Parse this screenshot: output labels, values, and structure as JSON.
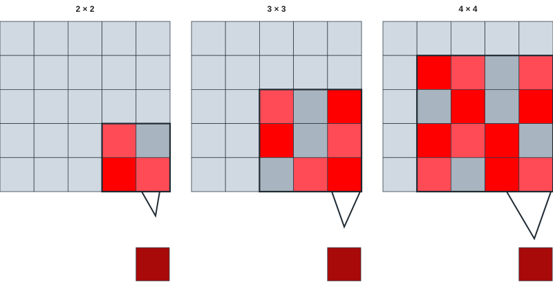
{
  "panels": [
    {
      "title": "2 × 2"
    },
    {
      "title": "3 × 3"
    },
    {
      "title": "4 × 4"
    }
  ]
}
